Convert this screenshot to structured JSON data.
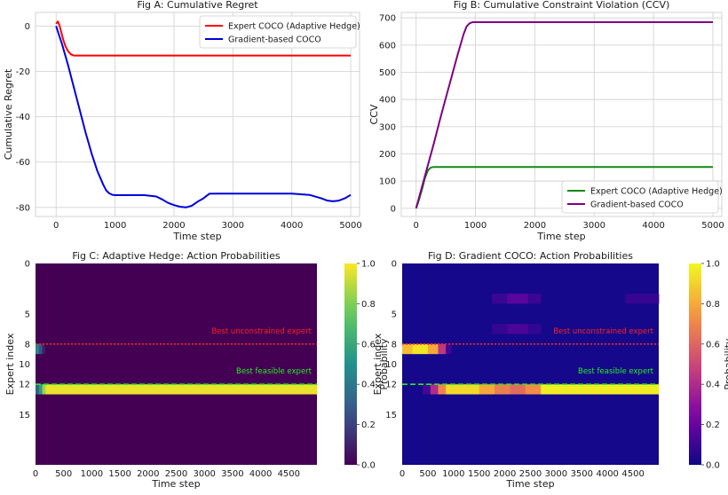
{
  "chart_data": [
    {
      "id": "A",
      "type": "line",
      "title": "Fig A: Cumulative Regret",
      "xlabel": "Time step",
      "ylabel": "Cumulative Regret",
      "xlim": [
        -350,
        5150
      ],
      "ylim": [
        -84,
        6
      ],
      "xticks": [
        0,
        1000,
        2000,
        3000,
        4000,
        5000
      ],
      "yticks": [
        0,
        -20,
        -40,
        -60,
        -80
      ],
      "grid": true,
      "legend_position": "top-right",
      "series": [
        {
          "name": "Expert COCO (Adaptive Hedge)",
          "color": "#ff0000",
          "x": [
            0,
            30,
            60,
            90,
            120,
            160,
            200,
            250,
            300,
            400,
            600,
            1000,
            2000,
            3000,
            4000,
            5000
          ],
          "y": [
            1,
            2,
            0,
            -3,
            -6,
            -9,
            -11,
            -12.5,
            -13,
            -13,
            -13,
            -13,
            -13,
            -13,
            -13,
            -13
          ]
        },
        {
          "name": "Gradient-based COCO",
          "color": "#0000dd",
          "x": [
            0,
            50,
            100,
            200,
            300,
            400,
            500,
            600,
            700,
            800,
            850,
            900,
            950,
            1000,
            1200,
            1500,
            1700,
            1800,
            1900,
            2000,
            2100,
            2200,
            2300,
            2400,
            2500,
            2600,
            2700,
            3000,
            3500,
            4000,
            4300,
            4500,
            4600,
            4700,
            4800,
            4900,
            5000
          ],
          "y": [
            0,
            -4,
            -8,
            -17,
            -27,
            -37,
            -47,
            -56,
            -64,
            -70,
            -72.5,
            -73.8,
            -74.4,
            -74.6,
            -74.6,
            -74.6,
            -75.2,
            -76.5,
            -78,
            -79,
            -79.7,
            -80,
            -79.3,
            -77.5,
            -76,
            -74,
            -73.9,
            -73.9,
            -73.9,
            -73.9,
            -74.5,
            -76,
            -77,
            -77.3,
            -77,
            -76,
            -74.5
          ]
        }
      ]
    },
    {
      "id": "B",
      "type": "line",
      "title": "Fig B: Cumulative Constraint Violation (CCV)",
      "xlabel": "Time step",
      "ylabel": "CCV",
      "xlim": [
        -250,
        5150
      ],
      "ylim": [
        -30,
        720
      ],
      "xticks": [
        0,
        1000,
        2000,
        3000,
        4000,
        5000
      ],
      "yticks": [
        0,
        100,
        200,
        300,
        400,
        500,
        600,
        700
      ],
      "grid": true,
      "legend_position": "bottom-right",
      "series": [
        {
          "name": "Expert COCO (Adaptive Hedge)",
          "color": "#118811",
          "x": [
            0,
            50,
            100,
            150,
            200,
            250,
            300,
            400,
            1000,
            2000,
            3000,
            4000,
            5000
          ],
          "y": [
            0,
            33,
            70,
            112,
            140,
            150,
            152,
            152,
            152,
            152,
            152,
            152,
            152
          ]
        },
        {
          "name": "Gradient-based COCO",
          "color": "#800080",
          "x": [
            0,
            100,
            200,
            300,
            400,
            500,
            600,
            700,
            800,
            850,
            900,
            950,
            1000,
            2000,
            3000,
            4000,
            5000
          ],
          "y": [
            0,
            80,
            160,
            240,
            325,
            405,
            485,
            565,
            640,
            668,
            680,
            684,
            684,
            684,
            684,
            684,
            684
          ]
        }
      ]
    },
    {
      "id": "C",
      "type": "heatmap",
      "title": "Fig C: Adaptive Hedge: Action Probabilities",
      "xlabel": "Time step",
      "ylabel": "Expert index",
      "colormap": "viridis",
      "colorbar_label": "Probability",
      "colorbar_ticks": [
        "0.0",
        "0.2",
        "0.4",
        "0.6",
        "0.8",
        "1.0"
      ],
      "n_rows": 20,
      "n_steps": 5000,
      "xtick_labels": [
        "0",
        "500",
        "1000",
        "1500",
        "2000",
        "2500",
        "3000",
        "3500",
        "4000",
        "4500"
      ],
      "ytick_labels": [
        "0",
        "5",
        "8",
        "10",
        "12",
        "15"
      ],
      "ytick_values": [
        0,
        5,
        8,
        10,
        12,
        15
      ],
      "background_value": 0.0,
      "cells": [
        {
          "row": 8,
          "start": 0,
          "end": 60,
          "value": 0.45
        },
        {
          "row": 8,
          "start": 60,
          "end": 120,
          "value": 0.25
        },
        {
          "row": 8,
          "start": 120,
          "end": 170,
          "value": 0.08
        },
        {
          "row": 12,
          "start": 0,
          "end": 60,
          "value": 0.3
        },
        {
          "row": 12,
          "start": 60,
          "end": 120,
          "value": 0.55
        },
        {
          "row": 12,
          "start": 120,
          "end": 180,
          "value": 0.85
        },
        {
          "row": 12,
          "start": 180,
          "end": 5000,
          "value": 0.97
        }
      ],
      "annotations": [
        {
          "text": "Best unconstrained expert",
          "row": 8,
          "color": "#ff2020",
          "line": "dotted"
        },
        {
          "text": "Best feasible expert",
          "row": 12,
          "color": "#22ee22",
          "line": "dashed"
        }
      ]
    },
    {
      "id": "D",
      "type": "heatmap",
      "title": "Fig D: Gradient COCO: Action Probabilities",
      "xlabel": "Time step",
      "ylabel": "Expert index",
      "colormap": "plasma",
      "colorbar_label": "Probability",
      "colorbar_ticks": [
        "0.0",
        "0.2",
        "0.4",
        "0.6",
        "0.8",
        "1.0"
      ],
      "n_rows": 20,
      "n_steps": 5000,
      "xtick_labels": [
        "0",
        "500",
        "1000",
        "1500",
        "2000",
        "2500",
        "3000",
        "3500",
        "4000",
        "4500"
      ],
      "ytick_labels": [
        "0",
        "5",
        "8",
        "10",
        "12",
        "15"
      ],
      "ytick_values": [
        0,
        5,
        8,
        10,
        12,
        15
      ],
      "background_value": 0.02,
      "cells": [
        {
          "row": 8,
          "start": 0,
          "end": 200,
          "value": 0.85
        },
        {
          "row": 8,
          "start": 200,
          "end": 500,
          "value": 0.95
        },
        {
          "row": 8,
          "start": 500,
          "end": 700,
          "value": 0.8
        },
        {
          "row": 8,
          "start": 700,
          "end": 850,
          "value": 0.45
        },
        {
          "row": 8,
          "start": 850,
          "end": 950,
          "value": 0.12
        },
        {
          "row": 12,
          "start": 400,
          "end": 550,
          "value": 0.12
        },
        {
          "row": 12,
          "start": 550,
          "end": 700,
          "value": 0.4
        },
        {
          "row": 12,
          "start": 700,
          "end": 850,
          "value": 0.7
        },
        {
          "row": 12,
          "start": 850,
          "end": 1500,
          "value": 0.92
        },
        {
          "row": 12,
          "start": 1500,
          "end": 1800,
          "value": 0.8
        },
        {
          "row": 12,
          "start": 1800,
          "end": 2100,
          "value": 0.68
        },
        {
          "row": 12,
          "start": 2100,
          "end": 2400,
          "value": 0.62
        },
        {
          "row": 12,
          "start": 2400,
          "end": 2700,
          "value": 0.72
        },
        {
          "row": 12,
          "start": 2700,
          "end": 5000,
          "value": 0.97
        },
        {
          "row": 3,
          "start": 1750,
          "end": 2050,
          "value": 0.1
        },
        {
          "row": 3,
          "start": 2050,
          "end": 2450,
          "value": 0.17
        },
        {
          "row": 3,
          "start": 2450,
          "end": 2700,
          "value": 0.1
        },
        {
          "row": 3,
          "start": 4350,
          "end": 5000,
          "value": 0.09
        },
        {
          "row": 6,
          "start": 1750,
          "end": 2050,
          "value": 0.09
        },
        {
          "row": 6,
          "start": 2050,
          "end": 2450,
          "value": 0.14
        },
        {
          "row": 6,
          "start": 2450,
          "end": 2700,
          "value": 0.08
        }
      ],
      "annotations": [
        {
          "text": "Best unconstrained expert",
          "row": 8,
          "color": "#ff2020",
          "line": "dotted"
        },
        {
          "text": "Best feasible expert",
          "row": 12,
          "color": "#22ee22",
          "line": "dashed"
        }
      ]
    }
  ]
}
